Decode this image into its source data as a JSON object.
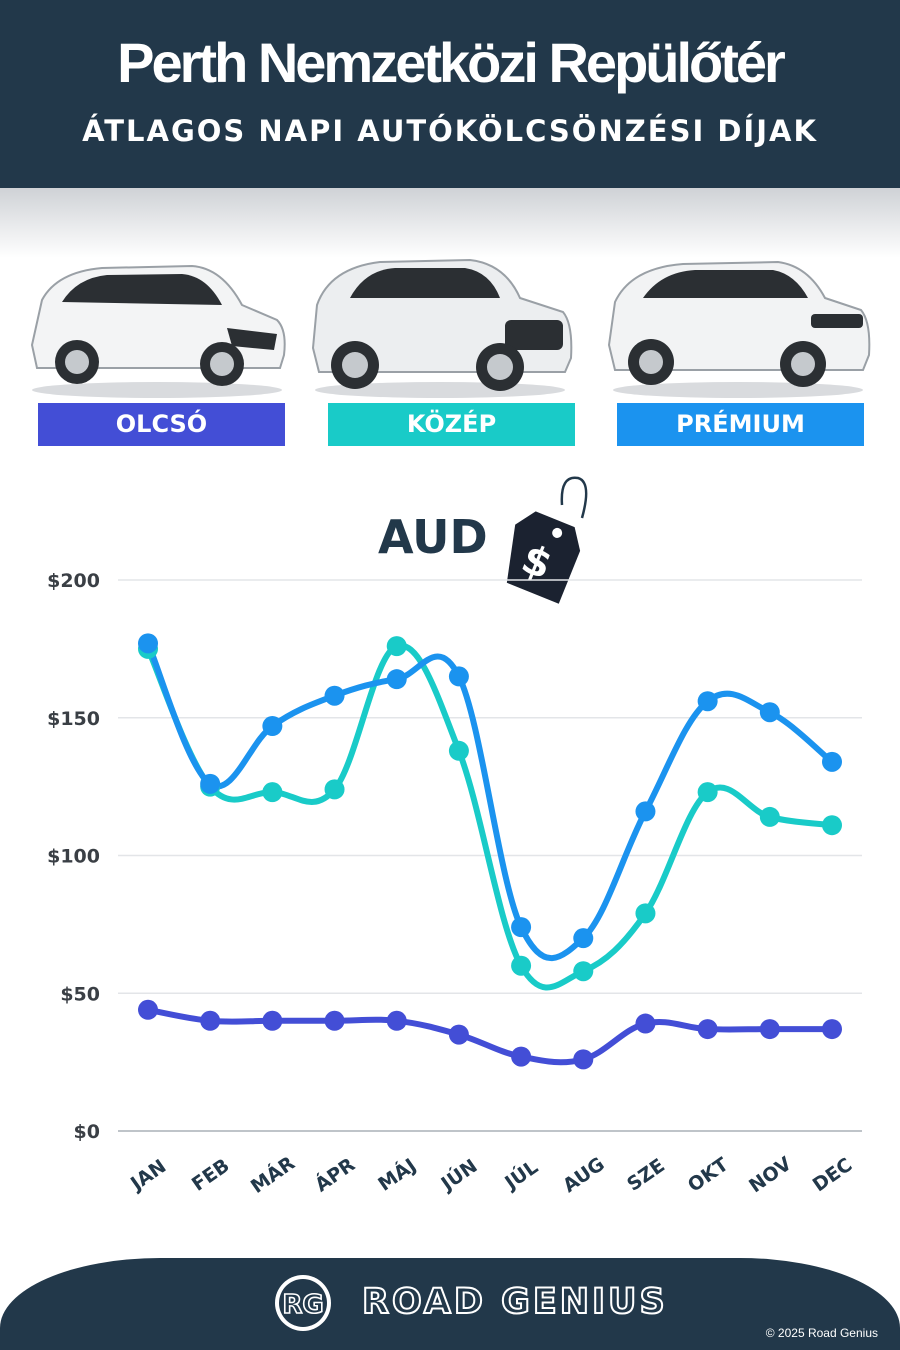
{
  "header": {
    "title": "Perth Nemzetközi Repülőtér",
    "subtitle": "ÁTLAGOS NAPI AUTÓKÖLCSÖNZÉSI DÍJAK"
  },
  "tiers": [
    {
      "label": "OLCSÓ",
      "color": "#434ed6"
    },
    {
      "label": "KÖZÉP",
      "color": "#19cbc8"
    },
    {
      "label": "PRÉMIUM",
      "color": "#1b93ef"
    }
  ],
  "currency": "AUD",
  "price_tag_symbol": "$",
  "chart_data": {
    "type": "line",
    "categories": [
      "JAN",
      "FEB",
      "MÁR",
      "ÁPR",
      "MÁJ",
      "JÚN",
      "JÚL",
      "AUG",
      "SZE",
      "OKT",
      "NOV",
      "DEC"
    ],
    "series": [
      {
        "color": "#434ed6",
        "values": [
          44,
          40,
          40,
          40,
          40,
          35,
          27,
          26,
          39,
          37,
          37,
          37
        ]
      },
      {
        "color": "#19cbc8",
        "values": [
          175,
          125,
          123,
          124,
          176,
          138,
          60,
          58,
          79,
          123,
          114,
          111
        ]
      },
      {
        "color": "#1b93ef",
        "values": [
          177,
          126,
          147,
          158,
          164,
          165,
          74,
          70,
          116,
          156,
          152,
          134
        ]
      }
    ],
    "y_ticks": [
      "$0",
      "$50",
      "$100",
      "$150",
      "$200"
    ],
    "y_tick_values": [
      0,
      50,
      100,
      150,
      200
    ],
    "ylim": [
      0,
      200
    ],
    "grid": true
  },
  "footer": {
    "logo_initials": "RG",
    "brand": "ROAD GENIUS",
    "copyright": "© 2025 Road Genius"
  }
}
